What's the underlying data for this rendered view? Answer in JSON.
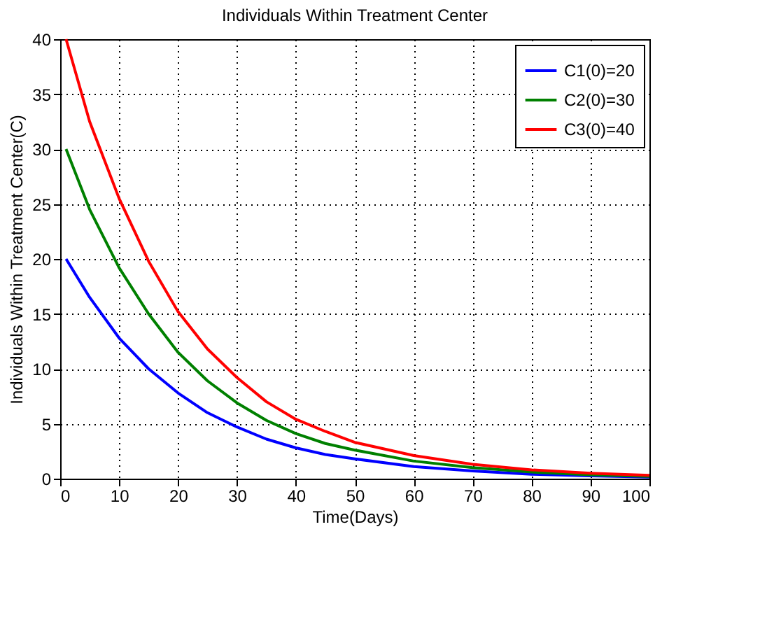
{
  "chart_data": {
    "type": "line",
    "title": "Individuals Within Treatment Center",
    "xlabel": "Time(Days)",
    "ylabel": "Individuals Within Treatment Center(C)",
    "x": [
      1,
      5,
      10,
      15,
      20,
      25,
      30,
      35,
      40,
      45,
      50,
      60,
      70,
      80,
      90,
      100
    ],
    "series": [
      {
        "name": "C1(0)=20",
        "color": "#0000ff",
        "values": [
          20,
          16.5,
          12.8,
          10,
          7.8,
          6,
          4.7,
          3.6,
          2.8,
          2.2,
          1.8,
          1.1,
          0.7,
          0.4,
          0.25,
          0.15
        ]
      },
      {
        "name": "C2(0)=30",
        "color": "#008000",
        "values": [
          30,
          24.5,
          19.2,
          15,
          11.5,
          8.9,
          6.9,
          5.3,
          4.1,
          3.2,
          2.6,
          1.6,
          1.0,
          0.6,
          0.35,
          0.2
        ]
      },
      {
        "name": "C3(0)=40",
        "color": "#ff0000",
        "values": [
          40,
          32.5,
          25.5,
          19.8,
          15.2,
          11.8,
          9.2,
          7,
          5.4,
          4.3,
          3.3,
          2.1,
          1.3,
          0.8,
          0.5,
          0.3
        ]
      }
    ],
    "xlim": [
      0,
      100
    ],
    "xticks": [
      0,
      10,
      20,
      30,
      40,
      50,
      60,
      70,
      80,
      90,
      100
    ],
    "ylim": [
      0,
      40
    ],
    "yticks": [
      0,
      5,
      10,
      15,
      20,
      25,
      30,
      35,
      40
    ],
    "grid": true,
    "legend": "top right",
    "line_style": "solid",
    "marker": "none"
  }
}
